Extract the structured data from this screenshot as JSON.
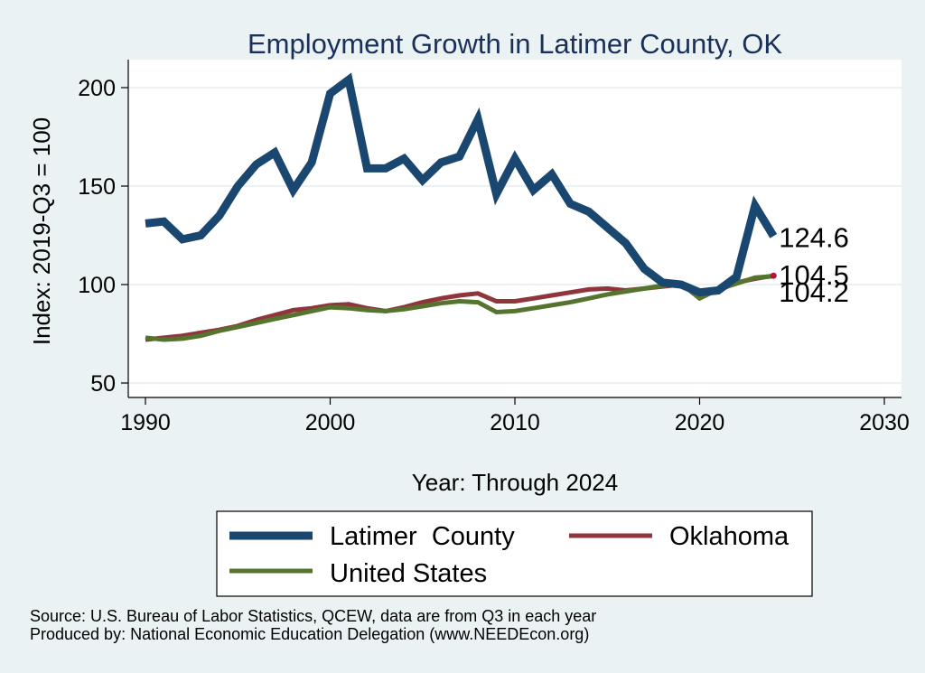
{
  "chart_data": {
    "type": "line",
    "title": "Employment Growth in Latimer County, OK",
    "xlabel": "Year: Through 2024",
    "ylabel": "Index: 2019-Q3 = 100",
    "xlim": [
      1990,
      2030
    ],
    "ylim": [
      45,
      210
    ],
    "xticks": [
      1990,
      2000,
      2010,
      2020,
      2030
    ],
    "yticks": [
      50,
      100,
      150,
      200
    ],
    "grid": true,
    "legend_position": "bottom",
    "x": [
      1990,
      1991,
      1992,
      1993,
      1994,
      1995,
      1996,
      1997,
      1998,
      1999,
      2000,
      2001,
      2002,
      2003,
      2004,
      2005,
      2006,
      2007,
      2008,
      2009,
      2010,
      2011,
      2012,
      2013,
      2014,
      2015,
      2016,
      2017,
      2018,
      2019,
      2020,
      2021,
      2022,
      2023,
      2024
    ],
    "series": [
      {
        "name": "Latimer  County",
        "color": "#1a476f",
        "values": [
          131,
          132,
          123,
          125,
          135,
          150,
          161,
          167,
          148,
          162,
          197,
          204,
          159,
          159,
          164,
          153,
          162,
          165,
          184,
          146,
          164,
          148,
          156,
          141,
          137,
          129,
          121,
          108,
          101,
          100,
          96,
          97,
          104,
          140,
          124.6
        ],
        "end_label": "124.6"
      },
      {
        "name": "Oklahoma",
        "color": "#90353b",
        "values": [
          72,
          73,
          74,
          75.5,
          77,
          79,
          82,
          84.5,
          87,
          88,
          89.5,
          90,
          88,
          86.5,
          88.5,
          91,
          93,
          94.5,
          95.5,
          91.5,
          91.5,
          93,
          94.5,
          96,
          97.5,
          98,
          97,
          98,
          99,
          100,
          94,
          97,
          101,
          103,
          104.5
        ],
        "end_label": "104.5"
      },
      {
        "name": "United States",
        "color": "#55752f",
        "values": [
          73,
          72,
          72.5,
          74,
          76.5,
          78.5,
          80.5,
          82.5,
          84.5,
          86.5,
          88.5,
          88,
          87,
          86.5,
          87.5,
          89,
          90.5,
          91.5,
          91,
          86,
          86.5,
          88,
          89.5,
          91,
          93,
          95,
          96.5,
          98,
          99.5,
          100.5,
          93,
          97.5,
          100.5,
          103.5,
          104.2
        ],
        "end_label": "104.2"
      }
    ],
    "legend": {
      "row1": [
        "Latimer  County",
        "Oklahoma"
      ],
      "row2": [
        "United States"
      ]
    },
    "highlight_point_color": "#c0103a"
  },
  "footer": {
    "source": "Source: U.S. Bureau of Labor Statistics, QCEW, data are from Q3 in each year",
    "produced_by": "Produced by: National Economic Education Delegation (www.NEEDEcon.org)"
  }
}
